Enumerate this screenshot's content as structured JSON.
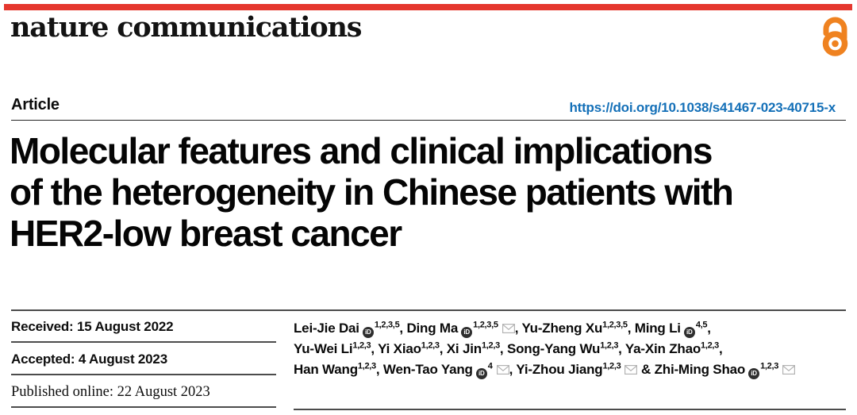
{
  "masthead": {
    "wordmark": "nature communications",
    "accent_color": "#e5372e",
    "open_access_icon": "open-access-lock-icon",
    "open_access_color": "#ef8220"
  },
  "article_header": {
    "kicker": "Article",
    "doi_link": "https://doi.org/10.1038/s41467-023-40715-x",
    "doi_color": "#1470b8"
  },
  "title": {
    "lines": [
      "Molecular features and clinical implications",
      "of the heterogeneity in Chinese patients with",
      "HER2-low breast cancer"
    ]
  },
  "dates": {
    "received": "Received: 15 August 2022",
    "accepted": "Accepted: 4 August 2023",
    "published_online": "Published online: 22 August 2023"
  },
  "authors": {
    "orcid_icon": "orcid-id-icon",
    "orcid_icon_label": "iD",
    "email_icon": "envelope-icon",
    "lines": [
      [
        {
          "name": "Lei-Jie Dai",
          "orcid": true,
          "sup": "1,2,3,5",
          "email": false,
          "trail": ", "
        },
        {
          "name": "Ding Ma",
          "orcid": true,
          "sup": "1,2,3,5",
          "email": true,
          "trail": ", "
        },
        {
          "name": "Yu-Zheng Xu",
          "orcid": false,
          "sup": "1,2,3,5",
          "email": false,
          "trail": ", "
        },
        {
          "name": "Ming Li",
          "orcid": true,
          "sup": "4,5",
          "email": false,
          "trail": ","
        }
      ],
      [
        {
          "name": "Yu-Wei Li",
          "orcid": false,
          "sup": "1,2,3",
          "email": false,
          "trail": ", "
        },
        {
          "name": "Yi Xiao",
          "orcid": false,
          "sup": "1,2,3",
          "email": false,
          "trail": ", "
        },
        {
          "name": "Xi Jin",
          "orcid": false,
          "sup": "1,2,3",
          "email": false,
          "trail": ", "
        },
        {
          "name": "Song-Yang Wu",
          "orcid": false,
          "sup": "1,2,3",
          "email": false,
          "trail": ", "
        },
        {
          "name": "Ya-Xin Zhao",
          "orcid": false,
          "sup": "1,2,3",
          "email": false,
          "trail": ","
        }
      ],
      [
        {
          "name": "Han Wang",
          "orcid": false,
          "sup": "1,2,3",
          "email": false,
          "trail": ", "
        },
        {
          "name": "Wen-Tao Yang",
          "orcid": true,
          "sup": "4",
          "email": true,
          "trail": ", "
        },
        {
          "name": "Yi-Zhou Jiang",
          "orcid": false,
          "sup": "1,2,3",
          "email": true,
          "trail": " & "
        },
        {
          "name": "Zhi-Ming Shao",
          "orcid": true,
          "sup": "1,2,3",
          "email": true,
          "trail": ""
        }
      ]
    ]
  }
}
